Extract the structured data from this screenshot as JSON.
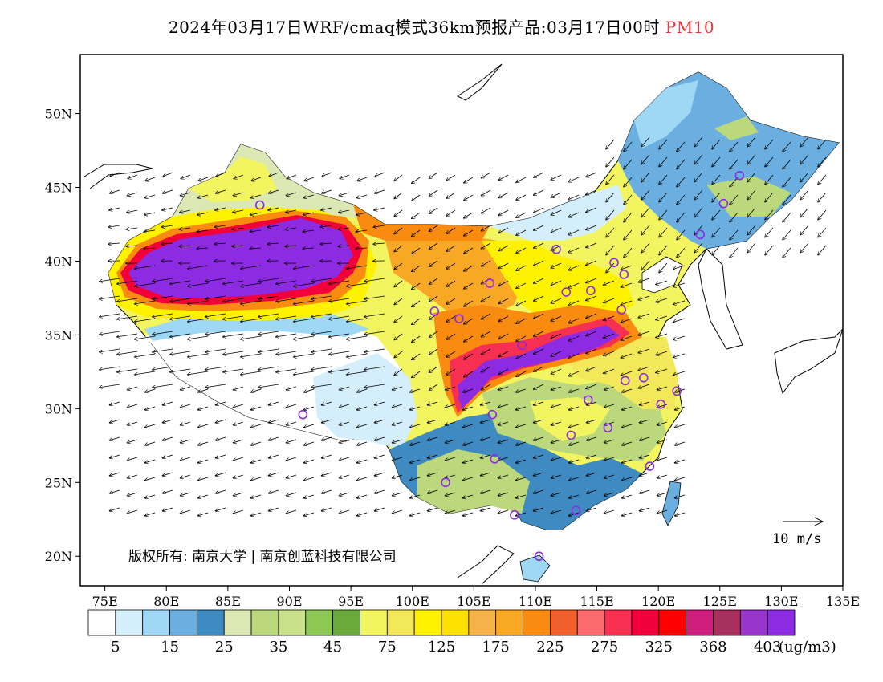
{
  "title": {
    "main": "2024年03月17日WRF/cmaq模式36km预报产品:03月17日00时",
    "pollutant": "PM10"
  },
  "axes": {
    "lat_ticks": [
      "50N",
      "45N",
      "40N",
      "35N",
      "30N",
      "25N",
      "20N"
    ],
    "lat_values": [
      50,
      45,
      40,
      35,
      30,
      25,
      20
    ],
    "lon_ticks": [
      "75E",
      "80E",
      "85E",
      "90E",
      "95E",
      "100E",
      "105E",
      "110E",
      "115E",
      "120E",
      "125E",
      "130E",
      "135E"
    ],
    "lon_values": [
      75,
      80,
      85,
      90,
      95,
      100,
      105,
      110,
      115,
      120,
      125,
      130,
      135
    ],
    "lon_range": [
      73,
      135
    ],
    "lat_range": [
      18,
      54
    ]
  },
  "wind_scale_label": "10 m/s",
  "copyright": "版权所有: 南京大学 | 南京创蓝科技有限公司",
  "colorbar": {
    "colors": [
      "#ffffff",
      "#d4eefb",
      "#9fd8f4",
      "#6aafdf",
      "#3f8ac0",
      "#dbe8b4",
      "#bcd87c",
      "#c8e08a",
      "#8ec855",
      "#6aaa3a",
      "#f2f560",
      "#f3e85a",
      "#fff200",
      "#fde000",
      "#f7b34a",
      "#f9a825",
      "#f98c10",
      "#f1602a",
      "#fb6a6f",
      "#f72f50",
      "#f2003a",
      "#ff0000",
      "#cf1d7d",
      "#a8305f",
      "#9a35cc",
      "#8d2be2"
    ],
    "labels": [
      "5",
      "15",
      "25",
      "35",
      "45",
      "75",
      "125",
      "175",
      "225",
      "275",
      "325",
      "368",
      "403"
    ],
    "unit": "(ug/m3)"
  },
  "cities": [
    {
      "lon": 87.6,
      "lat": 43.8
    },
    {
      "lon": 91.1,
      "lat": 29.6
    },
    {
      "lon": 101.8,
      "lat": 36.6
    },
    {
      "lon": 103.8,
      "lat": 36.1
    },
    {
      "lon": 106.3,
      "lat": 38.5
    },
    {
      "lon": 111.7,
      "lat": 40.8
    },
    {
      "lon": 112.5,
      "lat": 37.9
    },
    {
      "lon": 114.5,
      "lat": 38.0
    },
    {
      "lon": 116.4,
      "lat": 39.9
    },
    {
      "lon": 117.2,
      "lat": 39.1
    },
    {
      "lon": 117.0,
      "lat": 36.7
    },
    {
      "lon": 113.6,
      "lat": 34.8
    },
    {
      "lon": 108.9,
      "lat": 34.3
    },
    {
      "lon": 104.1,
      "lat": 30.7
    },
    {
      "lon": 106.5,
      "lat": 29.6
    },
    {
      "lon": 114.3,
      "lat": 30.6
    },
    {
      "lon": 117.3,
      "lat": 31.9
    },
    {
      "lon": 118.8,
      "lat": 32.1
    },
    {
      "lon": 121.5,
      "lat": 31.2
    },
    {
      "lon": 120.2,
      "lat": 30.3
    },
    {
      "lon": 112.9,
      "lat": 28.2
    },
    {
      "lon": 115.9,
      "lat": 28.7
    },
    {
      "lon": 119.3,
      "lat": 26.1
    },
    {
      "lon": 106.7,
      "lat": 26.6
    },
    {
      "lon": 102.7,
      "lat": 25.0
    },
    {
      "lon": 108.3,
      "lat": 22.8
    },
    {
      "lon": 113.3,
      "lat": 23.1
    },
    {
      "lon": 110.3,
      "lat": 20.0
    },
    {
      "lon": 123.4,
      "lat": 41.8
    },
    {
      "lon": 125.3,
      "lat": 43.9
    },
    {
      "lon": 126.6,
      "lat": 45.8
    }
  ],
  "pm10_high_regions": [
    {
      "level": "purple",
      "name": "Tarim Basin"
    },
    {
      "level": "purple",
      "name": "Sichuan-Central"
    }
  ]
}
